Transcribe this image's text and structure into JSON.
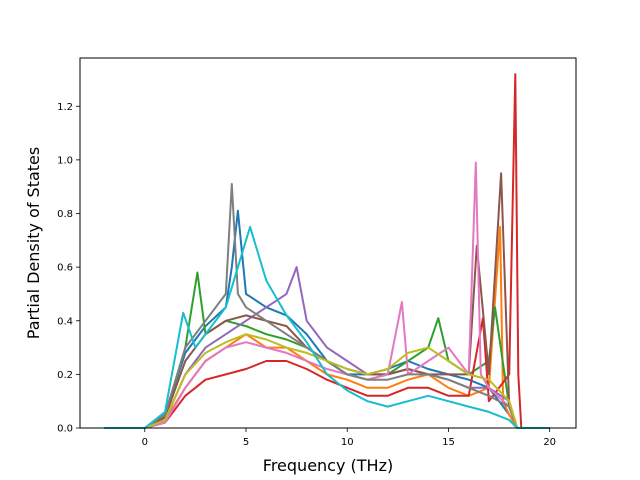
{
  "chart_data": {
    "type": "line",
    "title": "",
    "xlabel": "Frequency (THz)",
    "ylabel": "Partial Density of States",
    "xlim": [
      -3.2,
      21.3
    ],
    "ylim": [
      0,
      1.38
    ],
    "x_ticks": [
      0,
      5,
      10,
      15,
      20
    ],
    "x_tick_labels": [
      "0",
      "5",
      "10",
      "15",
      "20"
    ],
    "y_ticks": [
      0.0,
      0.2,
      0.4,
      0.6,
      0.8,
      1.0,
      1.2
    ],
    "y_tick_labels": [
      "0.0",
      "0.2",
      "0.4",
      "0.6",
      "0.8",
      "1.0",
      "1.2"
    ],
    "grid": false,
    "legend": "none",
    "colors": [
      "#1f77b4",
      "#ff7f0e",
      "#2ca02c",
      "#d62728",
      "#9467bd",
      "#8c564b",
      "#e377c2",
      "#7f7f7f",
      "#bcbd22",
      "#17becf"
    ],
    "series": [
      {
        "color": "#1f77b4",
        "x": [
          -2,
          0,
          1,
          2,
          3,
          4,
          4.3,
          4.6,
          5,
          6,
          7,
          8,
          9,
          10,
          11,
          12,
          13,
          14,
          15,
          16,
          17,
          17.5,
          18,
          18.4,
          20
        ],
        "y": [
          0,
          0,
          0.05,
          0.28,
          0.38,
          0.45,
          0.6,
          0.81,
          0.5,
          0.45,
          0.42,
          0.35,
          0.25,
          0.2,
          0.2,
          0.22,
          0.25,
          0.22,
          0.2,
          0.18,
          0.15,
          0.1,
          0.05,
          0,
          0
        ]
      },
      {
        "color": "#ff7f0e",
        "x": [
          -2,
          0,
          1,
          2,
          3,
          4,
          5,
          6,
          7,
          8,
          9,
          10,
          11,
          12,
          13,
          14,
          15,
          16,
          17,
          17.55,
          17.7,
          18,
          18.4,
          20
        ],
        "y": [
          0,
          0,
          0.03,
          0.15,
          0.25,
          0.3,
          0.35,
          0.3,
          0.3,
          0.25,
          0.2,
          0.18,
          0.15,
          0.15,
          0.18,
          0.2,
          0.15,
          0.12,
          0.15,
          0.75,
          0.1,
          0.05,
          0,
          0
        ]
      },
      {
        "color": "#2ca02c",
        "x": [
          -2,
          0,
          1,
          2,
          2.6,
          3,
          4,
          5,
          6,
          7,
          8,
          9,
          10,
          11,
          12,
          13,
          14,
          14.5,
          15,
          16,
          17,
          17.3,
          18,
          18.4,
          20
        ],
        "y": [
          0,
          0,
          0.04,
          0.3,
          0.58,
          0.35,
          0.4,
          0.38,
          0.35,
          0.33,
          0.3,
          0.25,
          0.2,
          0.18,
          0.2,
          0.25,
          0.3,
          0.41,
          0.25,
          0.2,
          0.25,
          0.45,
          0.08,
          0,
          0
        ]
      },
      {
        "color": "#d62728",
        "x": [
          -2,
          0,
          1,
          2,
          3,
          4,
          5,
          6,
          7,
          8,
          9,
          10,
          11,
          12,
          13,
          14,
          15,
          16,
          16.7,
          17,
          18,
          18.3,
          18.45,
          18.6,
          20
        ],
        "y": [
          0,
          0,
          0.02,
          0.12,
          0.18,
          0.2,
          0.22,
          0.25,
          0.25,
          0.22,
          0.18,
          0.15,
          0.12,
          0.12,
          0.15,
          0.15,
          0.12,
          0.12,
          0.41,
          0.1,
          0.2,
          1.32,
          0.2,
          0,
          0
        ]
      },
      {
        "color": "#9467bd",
        "x": [
          -2,
          0,
          1,
          2,
          3,
          4,
          5,
          6,
          7,
          7.5,
          8,
          9,
          10,
          11,
          12,
          13,
          14,
          15,
          16,
          17,
          18,
          18.4,
          20
        ],
        "y": [
          0,
          0,
          0.03,
          0.2,
          0.3,
          0.35,
          0.4,
          0.45,
          0.5,
          0.6,
          0.4,
          0.3,
          0.25,
          0.2,
          0.2,
          0.22,
          0.2,
          0.18,
          0.15,
          0.15,
          0.1,
          0,
          0
        ]
      },
      {
        "color": "#8c564b",
        "x": [
          -2,
          0,
          1,
          2,
          3,
          4,
          5,
          6,
          7,
          8,
          9,
          10,
          11,
          12,
          13,
          14,
          15,
          16,
          16.4,
          17,
          17.6,
          18,
          18.4,
          20
        ],
        "y": [
          0,
          0,
          0.04,
          0.25,
          0.35,
          0.4,
          0.42,
          0.4,
          0.38,
          0.3,
          0.25,
          0.22,
          0.2,
          0.2,
          0.22,
          0.2,
          0.2,
          0.2,
          0.68,
          0.2,
          0.95,
          0.08,
          0,
          0
        ]
      },
      {
        "color": "#e377c2",
        "x": [
          -2,
          0,
          1,
          2,
          3,
          4,
          5,
          6,
          7,
          8,
          9,
          10,
          11,
          12,
          12.7,
          13,
          14,
          15,
          16,
          16.35,
          16.6,
          17,
          18,
          18.4,
          20
        ],
        "y": [
          0,
          0,
          0.02,
          0.15,
          0.25,
          0.3,
          0.32,
          0.3,
          0.28,
          0.25,
          0.22,
          0.2,
          0.18,
          0.2,
          0.47,
          0.2,
          0.25,
          0.3,
          0.2,
          0.99,
          0.2,
          0.15,
          0.08,
          0,
          0
        ]
      },
      {
        "color": "#7f7f7f",
        "x": [
          -2,
          0,
          1,
          2,
          3,
          4,
          4.3,
          4.6,
          5,
          6,
          7,
          8,
          9,
          10,
          11,
          12,
          13,
          14,
          15,
          16,
          17,
          18,
          18.4,
          20
        ],
        "y": [
          0,
          0,
          0.05,
          0.3,
          0.4,
          0.5,
          0.91,
          0.5,
          0.45,
          0.4,
          0.35,
          0.3,
          0.25,
          0.2,
          0.18,
          0.18,
          0.2,
          0.2,
          0.18,
          0.15,
          0.12,
          0.08,
          0,
          0
        ]
      },
      {
        "color": "#bcbd22",
        "x": [
          -2,
          0,
          1,
          2,
          3,
          4,
          5,
          6,
          7,
          8,
          9,
          10,
          11,
          12,
          13,
          14,
          15,
          16,
          17,
          18,
          18.4,
          20
        ],
        "y": [
          0,
          0,
          0.03,
          0.2,
          0.28,
          0.32,
          0.35,
          0.33,
          0.3,
          0.28,
          0.25,
          0.22,
          0.2,
          0.22,
          0.28,
          0.3,
          0.25,
          0.2,
          0.18,
          0.1,
          0,
          0
        ]
      },
      {
        "color": "#17becf",
        "x": [
          -2,
          0,
          1,
          1.9,
          2.5,
          3,
          4,
          5,
          5.2,
          6,
          7,
          8,
          9,
          10,
          11,
          12,
          13,
          14,
          15,
          16,
          17,
          18,
          18.4,
          20
        ],
        "y": [
          0,
          0,
          0.06,
          0.43,
          0.3,
          0.35,
          0.45,
          0.7,
          0.75,
          0.55,
          0.42,
          0.32,
          0.2,
          0.14,
          0.1,
          0.08,
          0.1,
          0.12,
          0.1,
          0.08,
          0.06,
          0.03,
          0,
          0
        ]
      }
    ]
  }
}
